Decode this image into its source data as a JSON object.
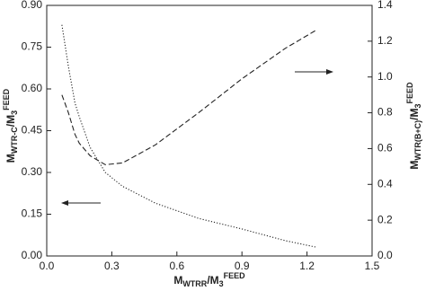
{
  "chart_data": {
    "type": "line",
    "xlabel_parts": [
      "M",
      "WTRR",
      "/M",
      "3",
      "FEED"
    ],
    "ylabel_parts": [
      "M",
      "WTR-C",
      "/M",
      "3",
      "FEED"
    ],
    "y2label_parts": [
      "M",
      "WTR(B+C)",
      "/M",
      "3",
      "FEED"
    ],
    "x": [
      0.07,
      0.1,
      0.13,
      0.15,
      0.2,
      0.27,
      0.35,
      0.5,
      0.7,
      0.9,
      1.1,
      1.24
    ],
    "series": [
      {
        "color": "#222222",
        "style": "dotted",
        "axis": "y",
        "values": [
          0.83,
          0.68,
          0.55,
          0.5,
          0.39,
          0.3,
          0.25,
          0.19,
          0.135,
          0.097,
          0.055,
          0.032
        ]
      },
      {
        "color": "#222222",
        "style": "dashed",
        "axis": "y2",
        "values": [
          0.9,
          0.8,
          0.68,
          0.63,
          0.56,
          0.51,
          0.52,
          0.62,
          0.8,
          0.99,
          1.16,
          1.26
        ]
      }
    ],
    "xlim": [
      0,
      1.5
    ],
    "xticks": [
      {
        "value": 0,
        "label": "0.0"
      },
      0.3,
      0.6,
      0.9,
      1.2,
      1.5
    ],
    "ylim": [
      0,
      0.9
    ],
    "yticks": [
      {
        "value": 0,
        "label": "0.00"
      },
      0.15,
      {
        "value": 0.3,
        "label": "0.30"
      },
      0.45,
      {
        "value": 0.6,
        "label": "0.60"
      },
      0.75,
      {
        "value": 0.9,
        "label": "0.90"
      }
    ],
    "y2lim": [
      0,
      1.4
    ],
    "y2ticks": [
      {
        "value": 0,
        "label": "0.0"
      },
      0.2,
      0.4,
      0.6,
      0.8,
      {
        "value": 1,
        "label": "1.0"
      },
      1.2,
      1.4
    ]
  }
}
